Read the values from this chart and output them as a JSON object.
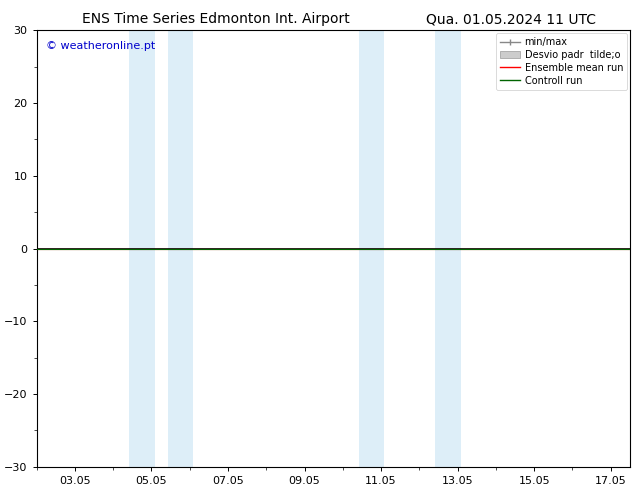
{
  "title_left": "ENS Time Series Edmonton Int. Airport",
  "title_right": "Qua. 01.05.2024 11 UTC",
  "watermark": "© weatheronline.pt",
  "watermark_color": "#0000cc",
  "ylim": [
    -30,
    30
  ],
  "yticks": [
    -30,
    -20,
    -10,
    0,
    10,
    20,
    30
  ],
  "xlim": [
    2.0,
    17.5
  ],
  "xtick_labels": [
    "03.05",
    "05.05",
    "07.05",
    "09.05",
    "11.05",
    "13.05",
    "15.05",
    "17.05"
  ],
  "xtick_positions": [
    3,
    5,
    7,
    9,
    11,
    13,
    15,
    17
  ],
  "background_color": "#ffffff",
  "plot_bg_color": "#ffffff",
  "shaded_bands": [
    {
      "x_start": 4.42,
      "x_end": 5.08,
      "color": "#ddeef8"
    },
    {
      "x_start": 5.42,
      "x_end": 6.08,
      "color": "#ddeef8"
    },
    {
      "x_start": 10.42,
      "x_end": 11.08,
      "color": "#ddeef8"
    },
    {
      "x_start": 12.42,
      "x_end": 13.08,
      "color": "#ddeef8"
    }
  ],
  "zero_line_color": "#000000",
  "ensemble_mean_color": "#ff0000",
  "control_run_color": "#006400",
  "minmax_color": "#888888",
  "std_band_color": "#cccccc",
  "legend_labels": [
    "min/max",
    "Desvio padr  tilde;o",
    "Ensemble mean run",
    "Controll run"
  ],
  "legend_colors": [
    "#888888",
    "#cccccc",
    "#ff0000",
    "#006400"
  ],
  "title_fontsize": 10,
  "axis_fontsize": 8,
  "watermark_fontsize": 8,
  "legend_fontsize": 7
}
